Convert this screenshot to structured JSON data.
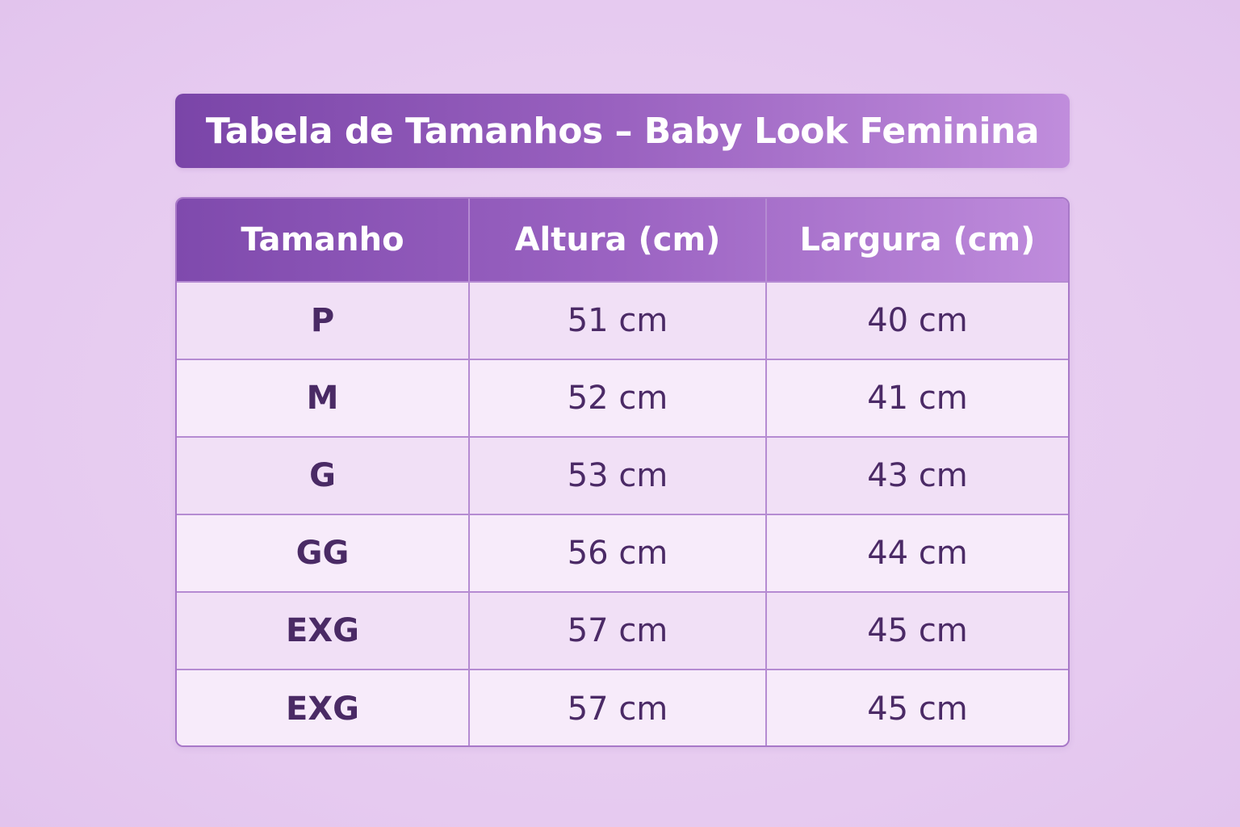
{
  "title": "Tabela de Tamanhos – Baby Look Feminina",
  "table": {
    "headers": [
      "Tamanho",
      "Altura (cm)",
      "Largura (cm)"
    ],
    "rows": [
      {
        "size": "P",
        "height": "51 cm",
        "width": "40 cm"
      },
      {
        "size": "M",
        "height": "52 cm",
        "width": "41 cm"
      },
      {
        "size": "G",
        "height": "53 cm",
        "width": "43 cm"
      },
      {
        "size": "GG",
        "height": "56 cm",
        "width": "44 cm"
      },
      {
        "size": "EXG",
        "height": "57 cm",
        "width": "45 cm"
      },
      {
        "size": "EXG",
        "height": "57 cm",
        "width": "45 cm"
      }
    ]
  },
  "colors": {
    "background": "#e6caf0",
    "header_start": "#7a45a8",
    "header_end": "#c08ddc",
    "text": "#4b2a66"
  }
}
